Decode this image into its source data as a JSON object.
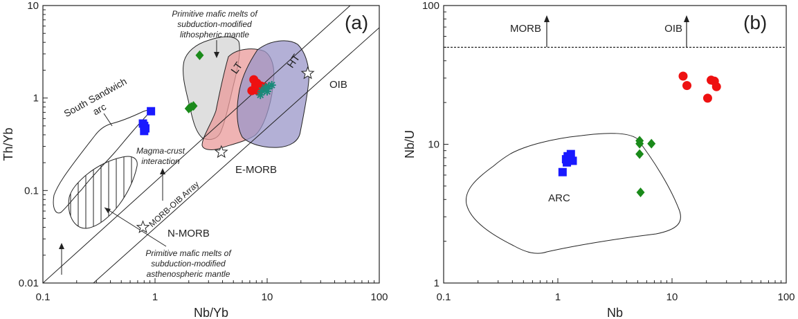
{
  "chart_data": [
    {
      "type": "scatter",
      "panel_label": "(a)",
      "xlabel": "Nb/Yb",
      "ylabel": "Th/Yb",
      "xscale": "log",
      "yscale": "log",
      "xlim": [
        0.1,
        100
      ],
      "ylim": [
        0.01,
        10
      ],
      "x_ticks": [
        "0.1",
        "1",
        "10",
        "100"
      ],
      "y_ticks": [
        "0.01",
        "0.1",
        "1",
        "10"
      ],
      "series": [
        {
          "marker": "square",
          "color": "#1a1aff",
          "x": [
            0.78,
            0.8,
            0.82,
            0.8,
            0.92
          ],
          "y": [
            0.53,
            0.5,
            0.47,
            0.44,
            0.72
          ]
        },
        {
          "marker": "diamond",
          "color": "#1a8a1a",
          "x": [
            2.0,
            2.1,
            2.2,
            2.5
          ],
          "y": [
            0.77,
            0.8,
            0.82,
            2.9
          ]
        },
        {
          "marker": "circle",
          "color": "#ee1111",
          "x": [
            7.6,
            8.1,
            8.8,
            7.3,
            9.4,
            8.4,
            7.9
          ],
          "y": [
            1.58,
            1.45,
            1.35,
            1.2,
            1.32,
            1.18,
            1.38
          ]
        },
        {
          "marker": "asterisk",
          "color": "#1a8a7a",
          "x": [
            9.0,
            9.6,
            10.3,
            11.0,
            10.0,
            8.7
          ],
          "y": [
            1.2,
            1.3,
            1.33,
            1.38,
            1.18,
            1.08
          ]
        }
      ],
      "reference_points": [
        {
          "name": "N-MORB",
          "x": 0.78,
          "y": 0.04
        },
        {
          "name": "E-MORB",
          "x": 3.9,
          "y": 0.26
        },
        {
          "name": "OIB",
          "x": 23,
          "y": 1.85
        }
      ],
      "annotations": {
        "ssa_line1": "South Sandwich",
        "ssa_line2": "arc",
        "lith_line1": "Primitive mafic melts of",
        "lith_line2": "subduction-modified",
        "lith_line3": "lithospheric mantle",
        "asth_line1": "Primitive mafic melts of",
        "asth_line2": "subduction-modified",
        "asth_line3": "asthenospheric mantle",
        "mci_line1": "Magma-crust",
        "mci_line2": "interaction",
        "array": "MORB-OIB Array",
        "lt": "LT",
        "ht": "HT",
        "oib": "OIB",
        "emorb": "E-MORB",
        "nmorb": "N-MORB"
      }
    },
    {
      "type": "scatter",
      "panel_label": "(b)",
      "xlabel": "Nb",
      "ylabel": "Nb/U",
      "xscale": "log",
      "yscale": "log",
      "xlim": [
        0.1,
        100
      ],
      "ylim": [
        1,
        100
      ],
      "x_ticks": [
        "0.1",
        "1",
        "10",
        "100"
      ],
      "y_ticks": [
        "1",
        "10",
        "100"
      ],
      "series": [
        {
          "marker": "square",
          "color": "#1a1aff",
          "x": [
            1.1,
            1.18,
            1.22,
            1.3,
            1.28,
            1.35,
            1.2
          ],
          "y": [
            6.3,
            7.8,
            8.2,
            8.5,
            7.7,
            7.6,
            7.4
          ]
        },
        {
          "marker": "diamond",
          "color": "#1a8a1a",
          "x": [
            5.2,
            5.2,
            6.6,
            5.2,
            5.3
          ],
          "y": [
            10.6,
            10.1,
            10.1,
            8.5,
            4.5
          ]
        },
        {
          "marker": "circle",
          "color": "#ee1111",
          "x": [
            12.5,
            13.5,
            20.5,
            22,
            23.5,
            24.5
          ],
          "y": [
            31,
            26.5,
            21.5,
            29,
            28.5,
            26
          ]
        }
      ],
      "reference_line": {
        "y": 50
      },
      "annotations": {
        "morb": "MORB",
        "oib": "OIB",
        "arc": "ARC"
      }
    }
  ]
}
